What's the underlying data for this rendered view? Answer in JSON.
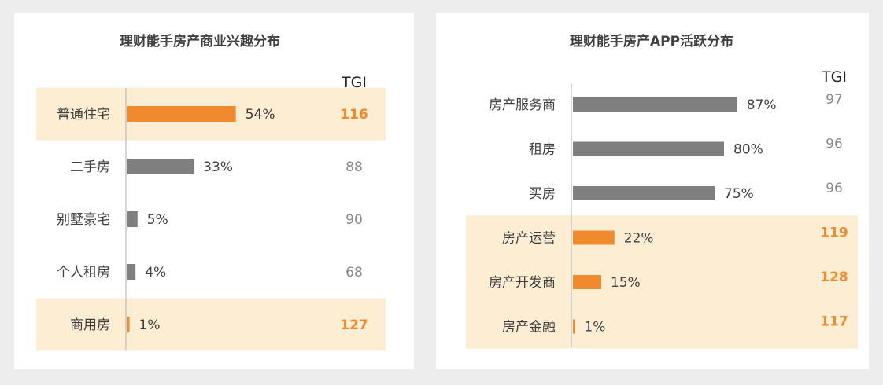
{
  "chart_data": [
    {
      "type": "bar",
      "orientation": "horizontal",
      "title": "理财能手房产商业兴趣分布",
      "tgi_label": "TGI",
      "categories": [
        "普通住宅",
        "二手房",
        "别墅豪宅",
        "个人租房",
        "商用房"
      ],
      "values": [
        54,
        33,
        5,
        4,
        1
      ],
      "value_labels": [
        "54%",
        "33%",
        "5%",
        "4%",
        "1%"
      ],
      "tgi": [
        116,
        88,
        90,
        68,
        127
      ],
      "highlighted": [
        true,
        false,
        false,
        false,
        true
      ],
      "xlim": [
        0,
        100
      ]
    },
    {
      "type": "bar",
      "orientation": "horizontal",
      "title": "理财能手房产APP活跃分布",
      "tgi_label": "TGI",
      "categories": [
        "房产服务商",
        "租房",
        "买房",
        "房产运营",
        "房产开发商",
        "房产金融"
      ],
      "values": [
        87,
        80,
        75,
        22,
        15,
        1
      ],
      "value_labels": [
        "87%",
        "80%",
        "75%",
        "22%",
        "15%",
        "1%"
      ],
      "tgi": [
        97,
        96,
        96,
        119,
        128,
        117
      ],
      "highlighted": [
        false,
        false,
        false,
        true,
        true,
        true
      ],
      "xlim": [
        0,
        100
      ]
    }
  ],
  "colors": {
    "bar_default": "#7f7f7f",
    "bar_highlight": "#ef8a2f",
    "highlight_band": "#fdedd3",
    "tgi_default": "#8a8a8a",
    "tgi_highlight": "#ef8a2f",
    "axis": "#c8c8c8"
  }
}
